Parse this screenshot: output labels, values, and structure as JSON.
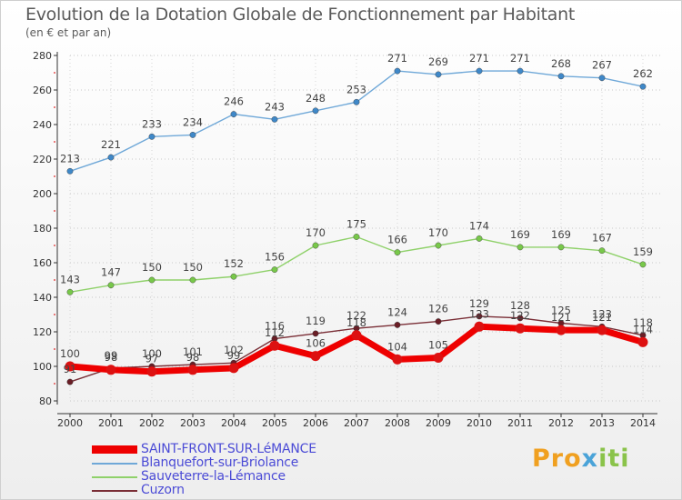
{
  "title": "Evolution de la Dotation Globale de Fonctionnement par Habitant",
  "subtitle": "(en € et par an)",
  "logo": {
    "p1": "Pro",
    "p2": "x",
    "p3": "iti"
  },
  "chart_data": {
    "type": "line",
    "title": "Evolution de la Dotation Globale de Fonctionnement par Habitant",
    "subtitle": "(en € et par an)",
    "xlabel": "",
    "ylabel": "",
    "x": [
      "2000",
      "2001",
      "2002",
      "2003",
      "2004",
      "2005",
      "2006",
      "2007",
      "2008",
      "2009",
      "2010",
      "2011",
      "2012",
      "2013",
      "2014"
    ],
    "ylim": [
      80,
      280
    ],
    "yticks": [
      80,
      100,
      120,
      140,
      160,
      180,
      200,
      220,
      240,
      260,
      280
    ],
    "grid": "horizontal dotted",
    "legend_position": "bottom-left",
    "series": [
      {
        "name": "SAINT-FRONT-SUR-LéMANCE",
        "color": "#ee0000",
        "marker": "#dd1111",
        "width": 7,
        "values": [
          100,
          98,
          97,
          98,
          99,
          112,
          106,
          118,
          104,
          105,
          123,
          122,
          121,
          121,
          114
        ]
      },
      {
        "name": "Blanquefort-sur-Briolance",
        "color": "#6fa8d8",
        "marker": "#3f88c8",
        "width": 1.4,
        "values": [
          213,
          221,
          233,
          234,
          246,
          243,
          248,
          253,
          271,
          269,
          271,
          271,
          268,
          267,
          262
        ]
      },
      {
        "name": "Sauveterre-la-Lémance",
        "color": "#8fd16a",
        "marker": "#78c84a",
        "width": 1.4,
        "values": [
          143,
          147,
          150,
          150,
          152,
          156,
          170,
          175,
          166,
          170,
          174,
          169,
          169,
          167,
          159
        ]
      },
      {
        "name": "Cuzorn",
        "color": "#7a2e36",
        "marker": "#6a1e26",
        "width": 1.4,
        "values": [
          91,
          99,
          100,
          101,
          102,
          116,
          119,
          122,
          124,
          126,
          129,
          128,
          125,
          123,
          118
        ]
      }
    ]
  }
}
